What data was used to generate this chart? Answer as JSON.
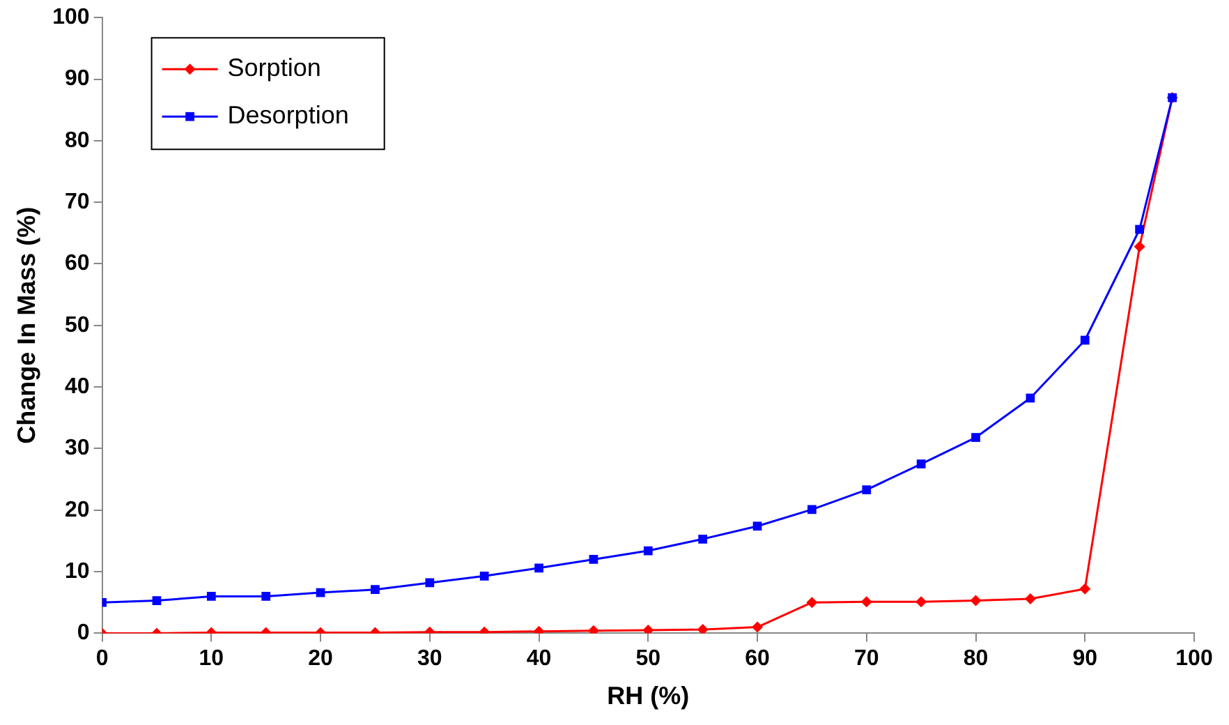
{
  "chart_data": {
    "type": "line",
    "xlabel": "RH (%)",
    "ylabel": "Change In Mass (%)",
    "x": [
      0,
      5,
      10,
      15,
      20,
      25,
      30,
      35,
      40,
      45,
      50,
      55,
      60,
      65,
      70,
      75,
      80,
      85,
      90,
      95,
      98
    ],
    "series": [
      {
        "name": "Sorption",
        "color": "#ff0000",
        "marker": "diamond",
        "values": [
          0,
          0,
          0.1,
          0.1,
          0.1,
          0.1,
          0.2,
          0.2,
          0.3,
          0.4,
          0.5,
          0.6,
          1,
          5,
          5.1,
          5.1,
          5.3,
          5.6,
          7.2,
          62.8,
          87
        ]
      },
      {
        "name": "Desorption",
        "color": "#0000ff",
        "marker": "square",
        "values": [
          5,
          5.3,
          6,
          6,
          6.6,
          7.1,
          8.2,
          9.3,
          10.6,
          12,
          13.4,
          15.3,
          17.4,
          20.1,
          23.3,
          27.5,
          31.8,
          38.2,
          47.6,
          65.6,
          87
        ]
      }
    ],
    "xlim": [
      0,
      100
    ],
    "xticks": [
      0,
      10,
      20,
      30,
      40,
      50,
      60,
      70,
      80,
      90,
      100
    ],
    "ylim": [
      0,
      100
    ],
    "yticks": [
      0,
      10,
      20,
      30,
      40,
      50,
      60,
      70,
      80,
      90,
      100
    ],
    "grid": false,
    "legend": "top left",
    "line_style": "solid"
  }
}
